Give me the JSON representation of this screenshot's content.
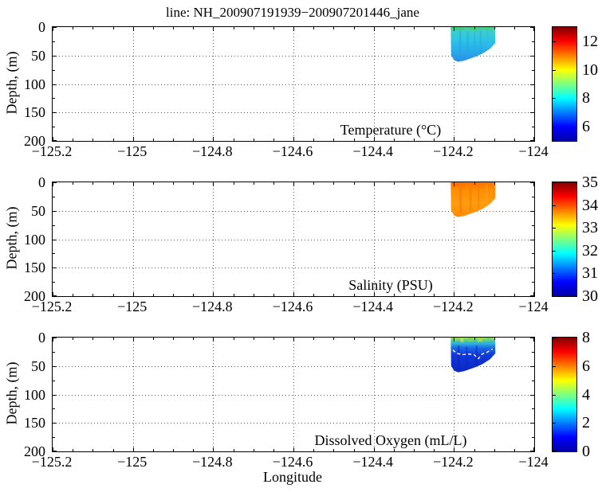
{
  "figure": {
    "title": "line: NH_200907191939−200907201446_jane",
    "xlabel": "Longitude",
    "ylabel": "Depth, (m)"
  },
  "axes": {
    "xmin": -125.2,
    "xmax": -124,
    "ymin": 0,
    "ymax": 200,
    "xtick_values": [
      -125.2,
      -125,
      -124.8,
      -124.6,
      -124.4,
      -124.2,
      -124
    ],
    "xtick_labels": [
      "−125.2",
      "−125",
      "−124.8",
      "−124.6",
      "−124.4",
      "−124.2",
      "−124"
    ],
    "ytick_values": [
      0,
      50,
      100,
      150,
      200
    ],
    "ytick_labels": [
      "0",
      "50",
      "100",
      "150",
      "200"
    ],
    "x_minor_step": 0.05,
    "y_minor_step": 25,
    "grid_x": [
      -125,
      -124.8,
      -124.6,
      -124.4,
      -124.2
    ],
    "grid_y": [
      50,
      100,
      150
    ],
    "grid_style": "dotted"
  },
  "panels": [
    {
      "id": "temperature",
      "label": "Temperature (°C)",
      "colorbar": {
        "min": 5,
        "max": 13,
        "tick_values": [
          12,
          10,
          8,
          6
        ],
        "tick_labels": [
          "12",
          "10",
          "8",
          "6"
        ]
      }
    },
    {
      "id": "salinity",
      "label": "Salinity (PSU)",
      "colorbar": {
        "min": 30,
        "max": 35,
        "tick_values": [
          35,
          34,
          33,
          32,
          31,
          30
        ],
        "tick_labels": [
          "35",
          "34",
          "33",
          "32",
          "31",
          "30"
        ]
      }
    },
    {
      "id": "dissolved-oxygen",
      "label": "Dissolved Oxygen (mL/L)",
      "colorbar": {
        "min": 0,
        "max": 8,
        "tick_values": [
          8,
          6,
          4,
          2,
          0
        ],
        "tick_labels": [
          "8",
          "6",
          "4",
          "2",
          "0"
        ]
      }
    }
  ],
  "colors": {
    "background": "#ffffff",
    "axis": "#000000",
    "grid": "#5a5a5a",
    "contour": "#ffffff",
    "jet_top_to_bottom": [
      "#7F0000",
      "#FF0000",
      "#FF7F00",
      "#FFFF00",
      "#7FFF7F",
      "#00FFFF",
      "#007FFF",
      "#0000FF",
      "#0000A8"
    ]
  },
  "chart_data": {
    "type": "heatmap",
    "title": "line: NH_200907191939−200907201446_jane",
    "xlabel": "Longitude",
    "ylabel": "Depth, (m)",
    "xlim": [
      -125.2,
      -124
    ],
    "depth_lim_m": [
      0,
      200
    ],
    "y_axis_reversed": true,
    "colormap": "jet",
    "grid": "dotted gridlines at every labeled tick",
    "data_footprint": {
      "longitude_range": [
        -124.208,
        -124.097
      ],
      "max_depth_profile": [
        [
          -124.208,
          0
        ],
        [
          -124.207,
          49
        ],
        [
          -124.2,
          58
        ],
        [
          -124.19,
          61
        ],
        [
          -124.175,
          59
        ],
        [
          -124.15,
          53
        ],
        [
          -124.13,
          47
        ],
        [
          -124.11,
          38
        ],
        [
          -124.097,
          28
        ],
        [
          -124.097,
          0
        ]
      ]
    },
    "sections": [
      {
        "variable": "Temperature",
        "units": "°C",
        "colorbar_range": [
          5,
          13
        ],
        "colorbar_ticks": [
          6,
          8,
          10,
          12
        ],
        "values_summary": {
          "surface": "9.5–10.5 °C (green patches at top)",
          "subsurface": "8–8.5 °C (cyan body)",
          "near_bottom": "7–7.5 °C (blue-cyan)"
        }
      },
      {
        "variable": "Salinity",
        "units": "PSU",
        "colorbar_range": [
          30,
          35
        ],
        "colorbar_ticks": [
          30,
          31,
          32,
          33,
          34,
          35
        ],
        "values_summary": {
          "overall": "33.5–34.2 PSU (uniform orange patch)"
        }
      },
      {
        "variable": "Dissolved Oxygen",
        "units": "mL/L",
        "colorbar_range": [
          0,
          8
        ],
        "colorbar_ticks": [
          0,
          2,
          4,
          6,
          8
        ],
        "values_summary": {
          "surface": "4–5.5 mL/L (yellow-green top band)",
          "below_20m": "0.5–1.5 mL/L (dark blue)"
        },
        "contour": {
          "style": "white dashed contour line within patch",
          "points": [
            [
              -124.203,
              22
            ],
            [
              -124.192,
              28
            ],
            [
              -124.178,
              30
            ],
            [
              -124.163,
              29
            ],
            [
              -124.15,
              30
            ],
            [
              -124.139,
              37
            ],
            [
              -124.13,
              29
            ],
            [
              -124.118,
              26
            ],
            [
              -124.104,
              20
            ]
          ]
        }
      }
    ]
  }
}
